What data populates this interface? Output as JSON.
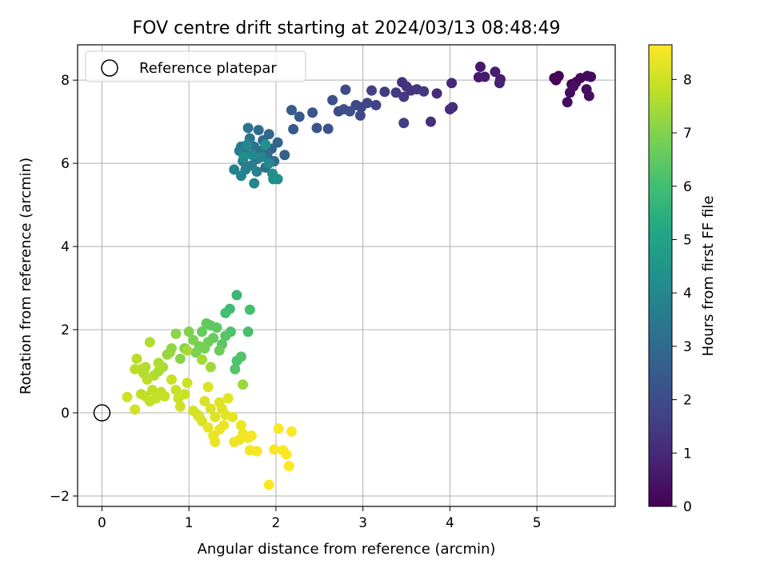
{
  "chart_data": {
    "type": "scatter",
    "title": "FOV centre drift starting at 2024/03/13 08:48:49",
    "xlabel": "Angular distance from reference (arcmin)",
    "ylabel": "Rotation from reference (arcmin)",
    "xlim": [
      -0.28,
      5.9
    ],
    "ylim": [
      -2.25,
      8.85
    ],
    "xticks": [
      0,
      1,
      2,
      3,
      4,
      5
    ],
    "yticks": [
      -2,
      0,
      2,
      4,
      6,
      8
    ],
    "grid": true,
    "legend": {
      "position": "top-left",
      "entries": [
        "Reference platepar"
      ]
    },
    "reference_point": {
      "x": 0,
      "y": 0
    },
    "colorbar": {
      "label": "Hours from first FF file",
      "range": [
        0,
        8.65
      ],
      "ticks": [
        0,
        1,
        2,
        3,
        4,
        5,
        6,
        7,
        8
      ],
      "colormap": "viridis"
    },
    "points": [
      {
        "x": 5.2,
        "y": 8.05,
        "h": 0.05
      },
      {
        "x": 5.25,
        "y": 8.1,
        "h": 0.08
      },
      {
        "x": 5.22,
        "y": 8.0,
        "h": 0.1
      },
      {
        "x": 5.4,
        "y": 7.9,
        "h": 0.15
      },
      {
        "x": 5.45,
        "y": 7.95,
        "h": 0.18
      },
      {
        "x": 5.5,
        "y": 8.05,
        "h": 0.2
      },
      {
        "x": 5.58,
        "y": 8.1,
        "h": 0.22
      },
      {
        "x": 5.62,
        "y": 8.08,
        "h": 0.25
      },
      {
        "x": 5.38,
        "y": 7.7,
        "h": 0.28
      },
      {
        "x": 5.35,
        "y": 7.47,
        "h": 0.3
      },
      {
        "x": 5.6,
        "y": 7.62,
        "h": 0.32
      },
      {
        "x": 5.57,
        "y": 7.78,
        "h": 0.35
      },
      {
        "x": 5.42,
        "y": 7.85,
        "h": 0.38
      },
      {
        "x": 4.35,
        "y": 8.32,
        "h": 0.55
      },
      {
        "x": 4.33,
        "y": 8.07,
        "h": 0.6
      },
      {
        "x": 4.4,
        "y": 8.08,
        "h": 0.65
      },
      {
        "x": 4.52,
        "y": 8.2,
        "h": 0.7
      },
      {
        "x": 4.58,
        "y": 8.02,
        "h": 0.75
      },
      {
        "x": 4.57,
        "y": 7.93,
        "h": 0.8
      },
      {
        "x": 4.02,
        "y": 7.93,
        "h": 1.0
      },
      {
        "x": 3.85,
        "y": 7.68,
        "h": 1.05
      },
      {
        "x": 4.0,
        "y": 7.3,
        "h": 1.1
      },
      {
        "x": 4.03,
        "y": 7.35,
        "h": 1.12
      },
      {
        "x": 3.78,
        "y": 7.0,
        "h": 1.15
      },
      {
        "x": 3.45,
        "y": 7.95,
        "h": 1.2
      },
      {
        "x": 3.5,
        "y": 7.85,
        "h": 1.25
      },
      {
        "x": 3.55,
        "y": 7.75,
        "h": 1.3
      },
      {
        "x": 3.62,
        "y": 7.78,
        "h": 1.35
      },
      {
        "x": 3.7,
        "y": 7.73,
        "h": 1.4
      },
      {
        "x": 3.47,
        "y": 7.6,
        "h": 1.45
      },
      {
        "x": 3.38,
        "y": 7.7,
        "h": 1.5
      },
      {
        "x": 3.25,
        "y": 7.72,
        "h": 1.55
      },
      {
        "x": 3.47,
        "y": 6.97,
        "h": 1.6
      },
      {
        "x": 3.1,
        "y": 7.75,
        "h": 1.65
      },
      {
        "x": 3.15,
        "y": 7.4,
        "h": 1.7
      },
      {
        "x": 3.05,
        "y": 7.45,
        "h": 1.75
      },
      {
        "x": 2.98,
        "y": 7.35,
        "h": 1.8
      },
      {
        "x": 2.92,
        "y": 7.4,
        "h": 1.85
      },
      {
        "x": 2.97,
        "y": 7.15,
        "h": 1.9
      },
      {
        "x": 2.8,
        "y": 7.77,
        "h": 1.95
      },
      {
        "x": 2.72,
        "y": 7.25,
        "h": 2.0
      },
      {
        "x": 2.78,
        "y": 7.3,
        "h": 2.05
      },
      {
        "x": 2.85,
        "y": 7.25,
        "h": 2.1
      },
      {
        "x": 2.65,
        "y": 7.52,
        "h": 2.15
      },
      {
        "x": 2.6,
        "y": 6.83,
        "h": 2.2
      },
      {
        "x": 2.47,
        "y": 6.85,
        "h": 2.25
      },
      {
        "x": 2.42,
        "y": 7.22,
        "h": 2.3
      },
      {
        "x": 2.27,
        "y": 7.12,
        "h": 2.4
      },
      {
        "x": 2.2,
        "y": 6.82,
        "h": 2.45
      },
      {
        "x": 2.18,
        "y": 7.28,
        "h": 2.5
      },
      {
        "x": 2.1,
        "y": 6.2,
        "h": 2.7
      },
      {
        "x": 2.02,
        "y": 6.5,
        "h": 2.8
      },
      {
        "x": 1.95,
        "y": 6.35,
        "h": 2.85
      },
      {
        "x": 1.98,
        "y": 6.05,
        "h": 2.9
      },
      {
        "x": 1.92,
        "y": 6.7,
        "h": 2.95
      },
      {
        "x": 1.8,
        "y": 6.8,
        "h": 3.0
      },
      {
        "x": 1.85,
        "y": 6.55,
        "h": 3.05
      },
      {
        "x": 1.9,
        "y": 6.2,
        "h": 3.1
      },
      {
        "x": 1.88,
        "y": 5.9,
        "h": 3.15
      },
      {
        "x": 1.82,
        "y": 6.3,
        "h": 3.2
      },
      {
        "x": 1.78,
        "y": 6.1,
        "h": 3.25
      },
      {
        "x": 1.75,
        "y": 6.4,
        "h": 3.3
      },
      {
        "x": 1.7,
        "y": 6.6,
        "h": 3.35
      },
      {
        "x": 1.68,
        "y": 6.85,
        "h": 3.4
      },
      {
        "x": 1.65,
        "y": 6.25,
        "h": 3.45
      },
      {
        "x": 1.62,
        "y": 6.05,
        "h": 3.5
      },
      {
        "x": 1.6,
        "y": 6.4,
        "h": 3.55
      },
      {
        "x": 1.58,
        "y": 6.3,
        "h": 3.6
      },
      {
        "x": 1.72,
        "y": 5.95,
        "h": 3.65
      },
      {
        "x": 1.78,
        "y": 5.8,
        "h": 3.7
      },
      {
        "x": 1.65,
        "y": 5.85,
        "h": 3.75
      },
      {
        "x": 1.6,
        "y": 5.7,
        "h": 3.8
      },
      {
        "x": 1.52,
        "y": 5.85,
        "h": 3.85
      },
      {
        "x": 1.75,
        "y": 5.52,
        "h": 3.9
      },
      {
        "x": 1.83,
        "y": 6.15,
        "h": 3.95
      },
      {
        "x": 1.73,
        "y": 6.2,
        "h": 4.0
      },
      {
        "x": 1.67,
        "y": 6.45,
        "h": 4.05
      },
      {
        "x": 1.92,
        "y": 6.0,
        "h": 4.1
      },
      {
        "x": 1.96,
        "y": 5.75,
        "h": 4.15
      },
      {
        "x": 1.97,
        "y": 5.62,
        "h": 4.2
      },
      {
        "x": 2.02,
        "y": 5.62,
        "h": 4.25
      },
      {
        "x": 1.63,
        "y": 6.15,
        "h": 4.3
      },
      {
        "x": 1.88,
        "y": 6.45,
        "h": 4.35
      },
      {
        "x": 1.55,
        "y": 2.83,
        "h": 5.8
      },
      {
        "x": 1.47,
        "y": 2.5,
        "h": 5.9
      },
      {
        "x": 1.42,
        "y": 2.4,
        "h": 6.0
      },
      {
        "x": 1.7,
        "y": 2.48,
        "h": 6.05
      },
      {
        "x": 1.68,
        "y": 1.95,
        "h": 6.1
      },
      {
        "x": 1.48,
        "y": 1.95,
        "h": 6.15
      },
      {
        "x": 1.55,
        "y": 1.25,
        "h": 6.2
      },
      {
        "x": 1.6,
        "y": 1.35,
        "h": 6.25
      },
      {
        "x": 1.53,
        "y": 1.05,
        "h": 6.3
      },
      {
        "x": 1.42,
        "y": 1.85,
        "h": 6.35
      },
      {
        "x": 1.38,
        "y": 1.65,
        "h": 6.4
      },
      {
        "x": 1.32,
        "y": 2.05,
        "h": 6.45
      },
      {
        "x": 1.25,
        "y": 2.1,
        "h": 6.5
      },
      {
        "x": 1.2,
        "y": 2.15,
        "h": 6.55
      },
      {
        "x": 1.15,
        "y": 1.95,
        "h": 6.6
      },
      {
        "x": 1.28,
        "y": 1.8,
        "h": 6.65
      },
      {
        "x": 1.35,
        "y": 1.5,
        "h": 6.7
      },
      {
        "x": 1.22,
        "y": 1.7,
        "h": 6.75
      },
      {
        "x": 1.18,
        "y": 1.55,
        "h": 6.8
      },
      {
        "x": 1.12,
        "y": 1.6,
        "h": 6.85
      },
      {
        "x": 1.08,
        "y": 1.45,
        "h": 6.9
      },
      {
        "x": 1.05,
        "y": 1.75,
        "h": 6.95
      },
      {
        "x": 1.0,
        "y": 1.95,
        "h": 7.0
      },
      {
        "x": 0.95,
        "y": 1.55,
        "h": 7.05
      },
      {
        "x": 0.9,
        "y": 1.3,
        "h": 7.1
      },
      {
        "x": 0.85,
        "y": 1.9,
        "h": 7.15
      },
      {
        "x": 0.8,
        "y": 1.55,
        "h": 7.2
      },
      {
        "x": 0.78,
        "y": 1.45,
        "h": 7.25
      },
      {
        "x": 0.75,
        "y": 1.4,
        "h": 7.3
      },
      {
        "x": 1.62,
        "y": 0.68,
        "h": 7.35
      },
      {
        "x": 1.25,
        "y": 1.1,
        "h": 7.4
      },
      {
        "x": 1.15,
        "y": 1.28,
        "h": 7.45
      },
      {
        "x": 0.98,
        "y": 1.5,
        "h": 7.5
      },
      {
        "x": 0.7,
        "y": 1.1,
        "h": 7.55
      },
      {
        "x": 0.65,
        "y": 1.2,
        "h": 7.6
      },
      {
        "x": 0.6,
        "y": 0.9,
        "h": 7.62
      },
      {
        "x": 0.55,
        "y": 1.7,
        "h": 7.65
      },
      {
        "x": 0.5,
        "y": 1.1,
        "h": 7.67
      },
      {
        "x": 0.45,
        "y": 1.05,
        "h": 7.7
      },
      {
        "x": 0.4,
        "y": 1.3,
        "h": 7.72
      },
      {
        "x": 0.38,
        "y": 1.05,
        "h": 7.74
      },
      {
        "x": 0.52,
        "y": 0.8,
        "h": 7.76
      },
      {
        "x": 0.58,
        "y": 0.55,
        "h": 7.78
      },
      {
        "x": 0.5,
        "y": 0.4,
        "h": 7.8
      },
      {
        "x": 0.45,
        "y": 0.45,
        "h": 7.82
      },
      {
        "x": 0.55,
        "y": 0.28,
        "h": 7.84
      },
      {
        "x": 0.62,
        "y": 0.35,
        "h": 7.86
      },
      {
        "x": 0.68,
        "y": 0.5,
        "h": 7.88
      },
      {
        "x": 0.72,
        "y": 0.4,
        "h": 7.9
      },
      {
        "x": 0.8,
        "y": 0.8,
        "h": 7.92
      },
      {
        "x": 0.85,
        "y": 0.55,
        "h": 7.94
      },
      {
        "x": 0.88,
        "y": 0.35,
        "h": 7.96
      },
      {
        "x": 0.95,
        "y": 0.45,
        "h": 7.98
      },
      {
        "x": 0.98,
        "y": 0.72,
        "h": 8.0
      },
      {
        "x": 0.9,
        "y": 0.15,
        "h": 8.02
      },
      {
        "x": 0.29,
        "y": 0.38,
        "h": 8.04
      },
      {
        "x": 0.38,
        "y": 0.08,
        "h": 8.06
      },
      {
        "x": 0.65,
        "y": 1.0,
        "h": 7.58
      },
      {
        "x": 0.48,
        "y": 0.95,
        "h": 7.64
      },
      {
        "x": 1.05,
        "y": 0.05,
        "h": 8.1
      },
      {
        "x": 1.1,
        "y": -0.05,
        "h": 8.12
      },
      {
        "x": 1.15,
        "y": -0.2,
        "h": 8.14
      },
      {
        "x": 1.18,
        "y": 0.28,
        "h": 8.16
      },
      {
        "x": 1.22,
        "y": 0.62,
        "h": 8.18
      },
      {
        "x": 1.25,
        "y": 0.1,
        "h": 8.2
      },
      {
        "x": 1.3,
        "y": -0.1,
        "h": 8.22
      },
      {
        "x": 1.35,
        "y": 0.25,
        "h": 8.24
      },
      {
        "x": 1.38,
        "y": 0.1,
        "h": 8.26
      },
      {
        "x": 1.42,
        "y": -0.05,
        "h": 8.28
      },
      {
        "x": 1.45,
        "y": 0.35,
        "h": 8.3
      },
      {
        "x": 1.5,
        "y": -0.1,
        "h": 8.32
      },
      {
        "x": 1.22,
        "y": -0.35,
        "h": 8.34
      },
      {
        "x": 1.28,
        "y": -0.55,
        "h": 8.36
      },
      {
        "x": 1.3,
        "y": -0.7,
        "h": 8.38
      },
      {
        "x": 1.35,
        "y": -0.4,
        "h": 8.4
      },
      {
        "x": 1.4,
        "y": -0.3,
        "h": 8.42
      },
      {
        "x": 1.52,
        "y": -0.7,
        "h": 8.44
      },
      {
        "x": 1.58,
        "y": -0.65,
        "h": 8.46
      },
      {
        "x": 1.62,
        "y": -0.5,
        "h": 8.48
      },
      {
        "x": 1.68,
        "y": -0.6,
        "h": 8.5
      },
      {
        "x": 1.72,
        "y": -0.55,
        "h": 8.52
      },
      {
        "x": 1.7,
        "y": -0.9,
        "h": 8.54
      },
      {
        "x": 1.78,
        "y": -0.92,
        "h": 8.56
      },
      {
        "x": 1.6,
        "y": -0.3,
        "h": 8.4
      },
      {
        "x": 1.98,
        "y": -0.88,
        "h": 8.58
      },
      {
        "x": 2.03,
        "y": -0.38,
        "h": 8.59
      },
      {
        "x": 2.08,
        "y": -0.9,
        "h": 8.6
      },
      {
        "x": 2.12,
        "y": -1.0,
        "h": 8.61
      },
      {
        "x": 2.18,
        "y": -0.45,
        "h": 8.62
      },
      {
        "x": 2.15,
        "y": -1.28,
        "h": 8.63
      },
      {
        "x": 1.92,
        "y": -1.73,
        "h": 8.65
      },
      {
        "x": 1.12,
        "y": -0.1,
        "h": 8.15
      }
    ]
  }
}
